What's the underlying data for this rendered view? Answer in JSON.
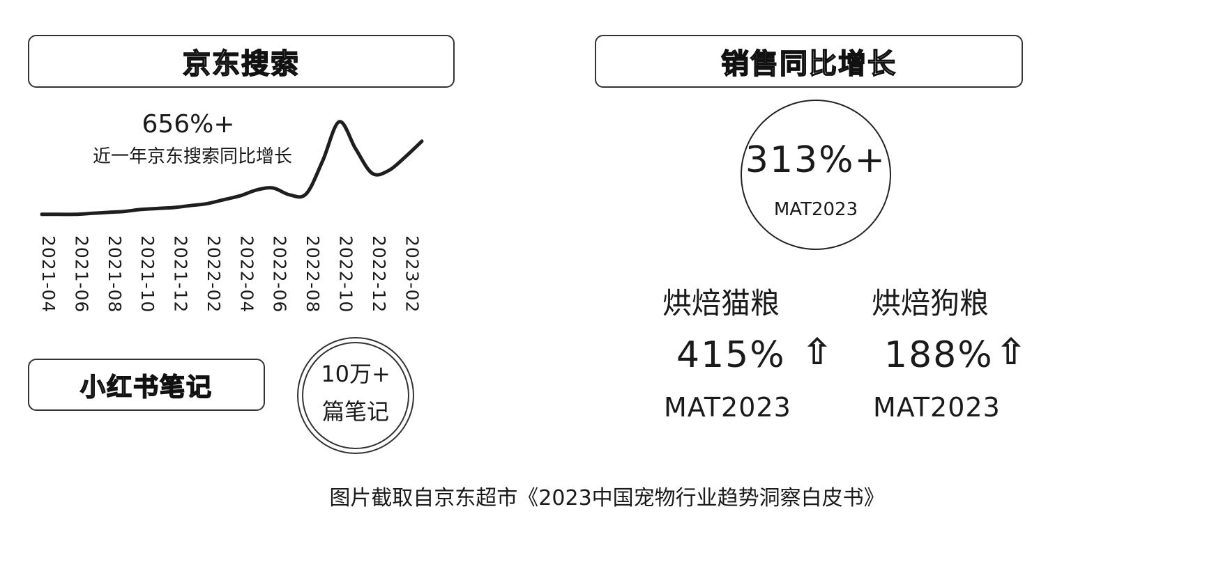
{
  "left": {
    "header_title": "京东搜索",
    "annotation_value": "656%+",
    "annotation_text": "近一年京东搜索同比增长",
    "note_box_title": "小红书笔记",
    "note_badge": {
      "line1": "10万+",
      "line2": "篇笔记"
    }
  },
  "right": {
    "header_title": "销售同比增长",
    "headline": {
      "value": "313%+",
      "period": "MAT2023"
    },
    "items": [
      {
        "label": "烘焙猫粮",
        "value": "415%",
        "arrow": "⇧",
        "period": "MAT2023"
      },
      {
        "label": "烘焙狗粮",
        "value": "188%",
        "arrow": "⇧",
        "period": "MAT2023"
      }
    ]
  },
  "caption": "图片截取自京东超市《2023中国宠物行业趋势洞察白皮书》",
  "chart_data": {
    "type": "line",
    "title": "",
    "xlabel": "",
    "ylabel": "",
    "categories": [
      "2021-04",
      "2021-06",
      "2021-08",
      "2021-10",
      "2021-12",
      "2022-02",
      "2022-04",
      "2022-06",
      "2022-08",
      "2022-10",
      "2022-12",
      "2023-02"
    ],
    "x": [
      "2021-04",
      "2021-05",
      "2021-06",
      "2021-07",
      "2021-08",
      "2021-09",
      "2021-10",
      "2021-11",
      "2021-12",
      "2022-01",
      "2022-02",
      "2022-03",
      "2022-04",
      "2022-05",
      "2022-06",
      "2022-07",
      "2022-08",
      "2022-09",
      "2022-10",
      "2022-11",
      "2022-12",
      "2023-01",
      "2023-02",
      "2023-03"
    ],
    "values": [
      3,
      3,
      3,
      4,
      5,
      6,
      8,
      9,
      10,
      12,
      14,
      18,
      22,
      28,
      30,
      23,
      24,
      58,
      98,
      70,
      45,
      48,
      62,
      78
    ],
    "ylim": [
      0,
      100
    ],
    "grid": false,
    "legend": "none",
    "line_color": "#1e1e1e"
  }
}
